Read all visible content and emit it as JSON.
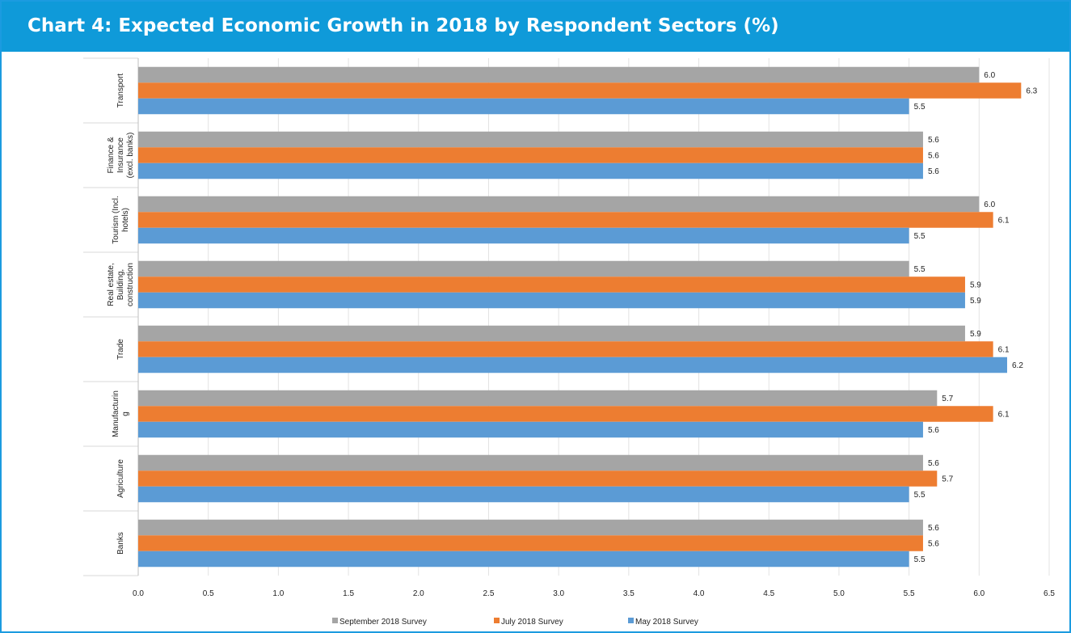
{
  "title": "Chart 4: Expected Economic Growth in 2018 by Respondent Sectors (%)",
  "colors": {
    "header_bg": "#0f9ad9",
    "border": "#1b9be0",
    "grid": "#e3e3e3"
  },
  "chart_data": {
    "type": "bar",
    "orientation": "horizontal",
    "categories": [
      [
        "Transport"
      ],
      [
        "Finance &",
        "Insurance",
        "(excl. banks)"
      ],
      [
        "Tourism (Incl.",
        "hotels)"
      ],
      [
        "Real estate,",
        "Building,",
        "construction"
      ],
      [
        "Trade"
      ],
      [
        "Manufacturin",
        "g"
      ],
      [
        "Agriculture"
      ],
      [
        "Banks"
      ]
    ],
    "series": [
      {
        "name": "September 2018 Survey",
        "color": "#a5a5a5",
        "values": [
          6.0,
          5.6,
          6.0,
          5.5,
          5.9,
          5.7,
          5.6,
          5.6
        ],
        "data_labels": [
          "6.0",
          "5.6",
          "6.0",
          "5.5",
          "5.9",
          "5.7",
          "5.6",
          "5.6"
        ]
      },
      {
        "name": "July 2018 Survey",
        "color": "#ed7d31",
        "values": [
          6.3,
          5.6,
          6.1,
          5.9,
          6.1,
          6.1,
          5.7,
          5.6
        ],
        "data_labels": [
          "6.3",
          "5.6",
          "6.1",
          "5.9",
          "6.1",
          "6.1",
          "5.7",
          "5.6"
        ]
      },
      {
        "name": "May 2018 Survey",
        "color": "#5b9bd5",
        "values": [
          5.5,
          5.6,
          5.5,
          5.9,
          6.2,
          5.6,
          5.5,
          5.5
        ],
        "data_labels": [
          "5.5",
          "5.6",
          "5.5",
          "5.9",
          "6.2",
          "5.6",
          "5.5",
          "5.5"
        ]
      }
    ],
    "xlim": [
      0.0,
      6.5
    ],
    "xticks": [
      "0.0",
      "0.5",
      "1.0",
      "1.5",
      "2.0",
      "2.5",
      "3.0",
      "3.5",
      "4.0",
      "4.5",
      "5.0",
      "5.5",
      "6.0",
      "6.5"
    ],
    "xlabel": "",
    "ylabel": "",
    "grid": true,
    "legend_position": "bottom"
  }
}
